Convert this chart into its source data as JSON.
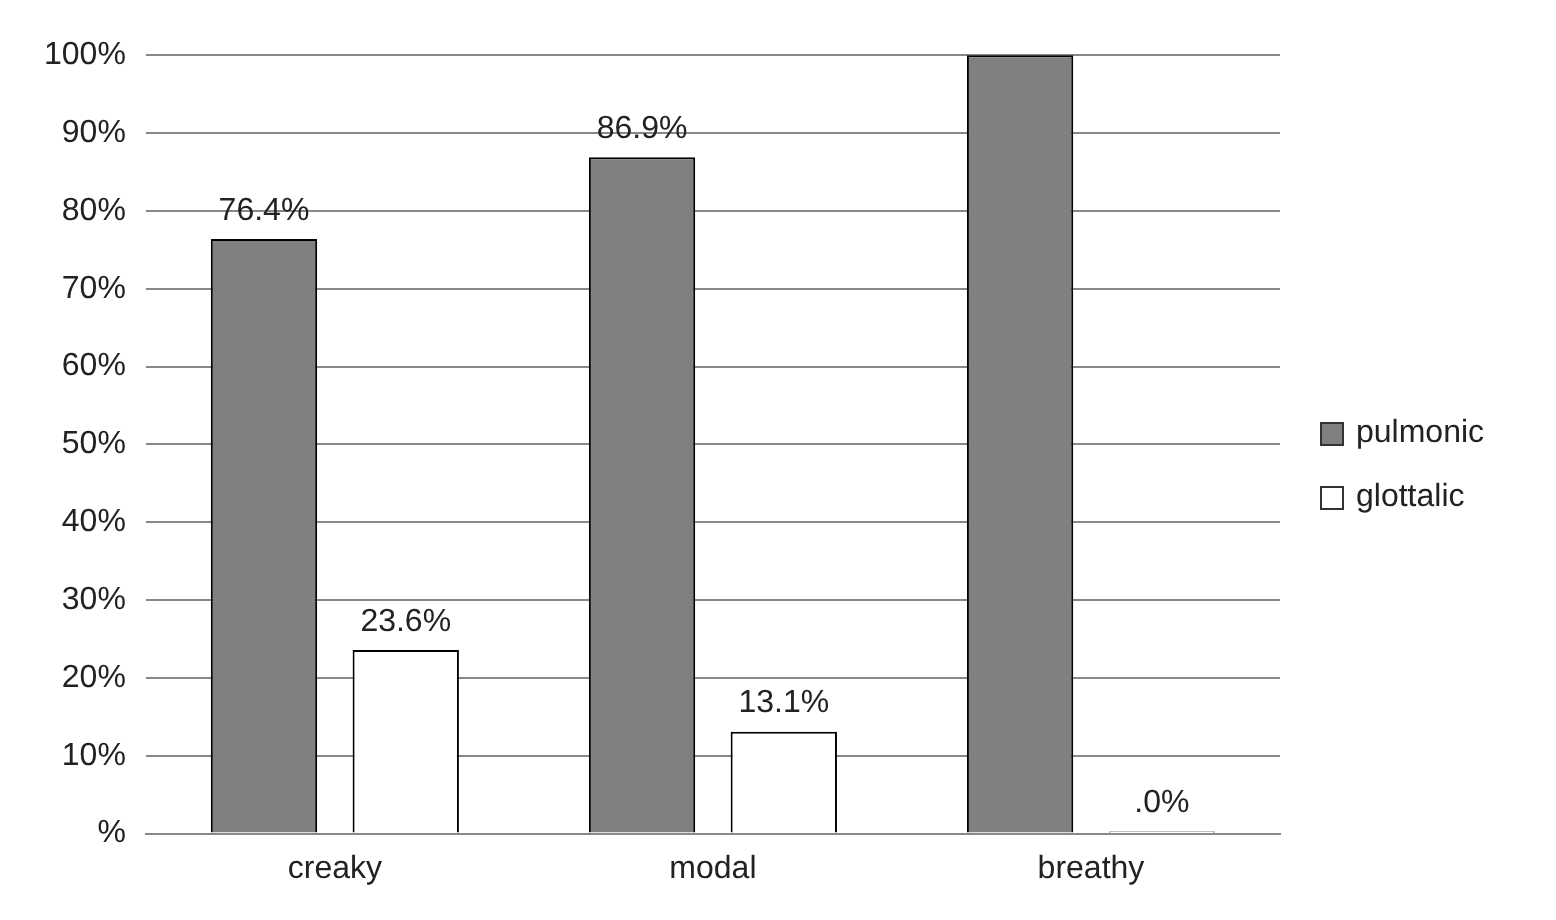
{
  "chart_data": {
    "type": "bar",
    "categories": [
      "creaky",
      "modal",
      "breathy"
    ],
    "series": [
      {
        "name": "pulmonic",
        "color": "#808080",
        "values": [
          76.4,
          86.9,
          100
        ],
        "value_labels": [
          "76.4%",
          "86.9%",
          null
        ]
      },
      {
        "name": "glottalic",
        "color": "#ffffff",
        "values": [
          23.6,
          13.1,
          0
        ],
        "value_labels": [
          "23.6%",
          "13.1%",
          ".0%"
        ]
      }
    ],
    "ylim": [
      0,
      100
    ],
    "yticks": [
      {
        "value": 0,
        "label": "%"
      },
      {
        "value": 10,
        "label": "10%"
      },
      {
        "value": 20,
        "label": "20%"
      },
      {
        "value": 30,
        "label": "30%"
      },
      {
        "value": 40,
        "label": "40%"
      },
      {
        "value": 50,
        "label": "50%"
      },
      {
        "value": 60,
        "label": "60%"
      },
      {
        "value": 70,
        "label": "70%"
      },
      {
        "value": 80,
        "label": "80%"
      },
      {
        "value": 90,
        "label": "90%"
      },
      {
        "value": 100,
        "label": "100%"
      }
    ],
    "grid": "y",
    "legend": "right"
  }
}
